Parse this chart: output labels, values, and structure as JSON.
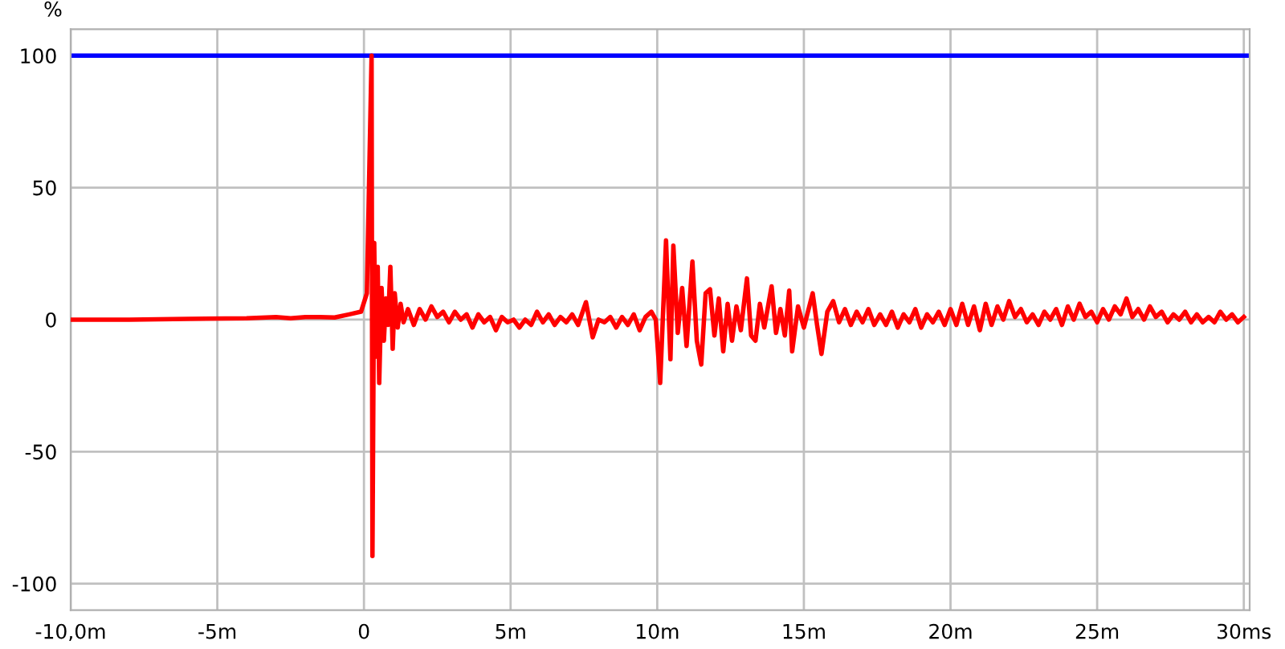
{
  "chart_data": {
    "type": "line",
    "ylabel": "%",
    "x": [
      -10,
      -8,
      -6,
      -4,
      -3,
      -2.5,
      -2,
      -1.5,
      -1,
      -0.5,
      -0.1,
      0.1,
      0.26,
      0.29,
      0.35,
      0.4,
      0.47,
      0.52,
      0.6,
      0.68,
      0.75,
      0.82,
      0.9,
      0.98,
      1.05,
      1.15,
      1.25,
      1.35,
      1.5,
      1.7,
      1.9,
      2.1,
      2.3,
      2.5,
      2.7,
      2.9,
      3.1,
      3.3,
      3.5,
      3.7,
      3.9,
      4.1,
      4.3,
      4.5,
      4.7,
      4.9,
      5.1,
      5.3,
      5.5,
      5.7,
      5.9,
      6.1,
      6.3,
      6.5,
      6.7,
      6.9,
      7.1,
      7.3,
      7.57,
      7.8,
      8.0,
      8.2,
      8.4,
      8.6,
      8.8,
      9.0,
      9.2,
      9.4,
      9.6,
      9.8,
      9.95,
      10.1,
      10.3,
      10.45,
      10.55,
      10.7,
      10.85,
      11.0,
      11.2,
      11.35,
      11.5,
      11.65,
      11.8,
      11.95,
      12.1,
      12.25,
      12.4,
      12.55,
      12.7,
      12.85,
      13.06,
      13.2,
      13.35,
      13.5,
      13.65,
      13.9,
      14.05,
      14.2,
      14.35,
      14.5,
      14.6,
      14.8,
      15.0,
      15.3,
      15.45,
      15.6,
      15.8,
      16.0,
      16.2,
      16.4,
      16.6,
      16.8,
      17.0,
      17.2,
      17.4,
      17.6,
      17.8,
      18.0,
      18.2,
      18.4,
      18.6,
      18.8,
      19.0,
      19.2,
      19.4,
      19.6,
      19.8,
      20.0,
      20.2,
      20.4,
      20.6,
      20.8,
      21.0,
      21.2,
      21.4,
      21.6,
      21.8,
      22.0,
      22.2,
      22.4,
      22.6,
      22.8,
      23.0,
      23.2,
      23.4,
      23.6,
      23.8,
      24.0,
      24.2,
      24.4,
      24.6,
      24.8,
      25.0,
      25.2,
      25.4,
      25.6,
      25.8,
      26.0,
      26.2,
      26.4,
      26.6,
      26.8,
      27.0,
      27.2,
      27.4,
      27.6,
      27.8,
      28.0,
      28.2,
      28.4,
      28.6,
      28.8,
      29.0,
      29.2,
      29.4,
      29.6,
      29.8,
      30.0
    ],
    "series": [
      {
        "color": "#ff0000",
        "values": [
          0,
          0,
          0.3,
          0.5,
          1,
          0.5,
          1,
          1,
          0.8,
          2,
          3,
          10,
          100,
          -89.5,
          29,
          -14,
          20,
          -24,
          12,
          -8,
          8,
          -2,
          20,
          -11,
          10,
          -3,
          6,
          -1,
          4,
          -2,
          4,
          0,
          5,
          1,
          3,
          -1,
          3,
          0,
          2,
          -3,
          2,
          -1,
          1,
          -4,
          1,
          -1,
          0,
          -3,
          0,
          -2,
          3,
          -1,
          2,
          -2,
          1,
          -1,
          2,
          -2,
          6.6,
          -6.7,
          0,
          -1,
          1,
          -3,
          1,
          -2,
          2,
          -4,
          1,
          3,
          0,
          -24,
          30,
          -15,
          28,
          -5,
          12,
          -10,
          22,
          -8,
          -17,
          10,
          11.5,
          -6,
          8,
          -12,
          6,
          -8,
          5,
          -4,
          15.6,
          -6,
          -8,
          6,
          -3,
          12.6,
          -5,
          4,
          -6,
          11,
          -12,
          5,
          -3,
          10,
          -2,
          -13,
          3,
          7,
          -1,
          4,
          -2,
          3,
          -1,
          4,
          -2,
          2,
          -2,
          3,
          -3,
          2,
          -1,
          4,
          -3,
          2,
          -1,
          3,
          -2,
          4,
          -2,
          6,
          -2,
          5,
          -4,
          6,
          -2,
          5,
          0,
          7,
          1,
          4,
          -1,
          2,
          -2,
          3,
          0,
          4,
          -2,
          5,
          0,
          6,
          1,
          3,
          -1,
          4,
          0,
          5,
          2,
          8,
          1,
          4,
          0,
          5,
          1,
          3,
          -1,
          2,
          0,
          3,
          -1,
          2,
          -1,
          1,
          -1,
          3,
          0,
          2,
          -1,
          1
        ]
      }
    ],
    "xlim": [
      -10,
      30.2
    ],
    "ylim": [
      -110,
      110
    ],
    "xticks": [
      {
        "value": -10,
        "label": "-10,0m"
      },
      {
        "value": -5,
        "label": "-5m"
      },
      0,
      {
        "value": 5,
        "label": "5m"
      },
      {
        "value": 10,
        "label": "10m"
      },
      {
        "value": 15,
        "label": "15m"
      },
      {
        "value": 20,
        "label": "20m"
      },
      {
        "value": 25,
        "label": "25m"
      },
      {
        "value": 30,
        "label": "30ms"
      }
    ],
    "yticks": [
      -100,
      -50,
      0,
      50,
      100
    ],
    "ref_lines": [
      {
        "axis": "y",
        "value": 100,
        "color": "#0000ff"
      }
    ],
    "grid": true,
    "legend": false,
    "marker": "none",
    "line_style": "solid"
  }
}
